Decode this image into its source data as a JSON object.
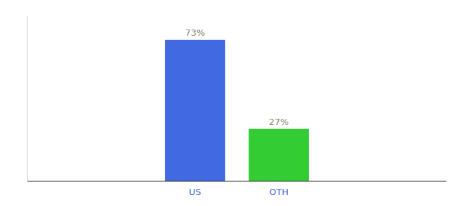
{
  "chart_data": {
    "type": "bar",
    "categories": [
      "US",
      "OTH"
    ],
    "values": [
      73,
      27
    ],
    "value_labels": [
      "73%",
      "27%"
    ],
    "colors": [
      "#4169e1",
      "#33cc33"
    ],
    "ylim": [
      0,
      85
    ],
    "grid": false,
    "data_labels": true,
    "tick_labels": "x"
  }
}
